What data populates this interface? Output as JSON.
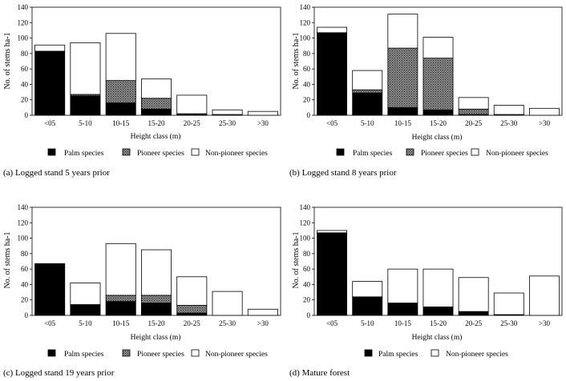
{
  "colors": {
    "palm": "#000000",
    "pioneer": "#7a7a7a",
    "nonpioneer": "#ffffff",
    "outline": "#000000"
  },
  "chart_data": [
    {
      "type": "bar",
      "stacked": true,
      "caption": "(a) Logged stand 5 years prior",
      "xlabel": "Height class (m)",
      "ylabel": "No. of stems ha-1",
      "ylim": [
        0,
        140
      ],
      "yticks": [
        "0",
        "20",
        "40",
        "60",
        "80",
        "100",
        "120",
        "140"
      ],
      "categories": [
        "<05",
        "5-10",
        "10-15",
        "15-20",
        "20-25",
        "25-30",
        ">30"
      ],
      "series": [
        {
          "name": "Palm species",
          "values": [
            83,
            25,
            16,
            8,
            1,
            0,
            0
          ]
        },
        {
          "name": "Pioneer species",
          "values": [
            0,
            2,
            29,
            14,
            1,
            1,
            0
          ]
        },
        {
          "name": "Non-pioneer species",
          "values": [
            8,
            67,
            61,
            25,
            24,
            6,
            5
          ]
        }
      ],
      "legend": [
        "Palm species",
        "Pioneer species",
        "Non-pioneer species"
      ]
    },
    {
      "type": "bar",
      "stacked": true,
      "caption": "(b) Logged stand 8 years prior",
      "xlabel": "Height class (m)",
      "ylabel": "No. of stems ha-1",
      "ylim": [
        0,
        140
      ],
      "yticks": [
        "0",
        "20",
        "40",
        "60",
        "80",
        "100",
        "120",
        "140"
      ],
      "categories": [
        "<05",
        "5-10",
        "10-15",
        "15-20",
        "20-25",
        "25-30",
        ">30"
      ],
      "series": [
        {
          "name": "Palm species",
          "values": [
            106,
            29,
            10,
            7,
            1,
            0,
            0
          ]
        },
        {
          "name": "Pioneer species",
          "values": [
            1,
            4,
            77,
            67,
            7,
            1,
            0
          ]
        },
        {
          "name": "Non-pioneer species",
          "values": [
            7,
            25,
            44,
            27,
            15,
            12,
            9
          ]
        }
      ],
      "legend": [
        "Palm species",
        "Pioneer species",
        "Non-pioneer species"
      ]
    },
    {
      "type": "bar",
      "stacked": true,
      "caption": "(c) Logged stand 19 years prior",
      "xlabel": "Height class (m)",
      "ylabel": "No. of stems ha-1",
      "ylim": [
        0,
        140
      ],
      "yticks": [
        "0",
        "20",
        "40",
        "60",
        "80",
        "100",
        "120",
        "140"
      ],
      "categories": [
        "<05",
        "5-10",
        "10-15",
        "15-20",
        "20-25",
        "25-30",
        ">30"
      ],
      "series": [
        {
          "name": "Palm species",
          "values": [
            67,
            14,
            18,
            16,
            3,
            0,
            0
          ]
        },
        {
          "name": "Pioneer species",
          "values": [
            0,
            0,
            8,
            10,
            10,
            0,
            0
          ]
        },
        {
          "name": "Non-pioneer species",
          "values": [
            0,
            28,
            67,
            59,
            37,
            31,
            8
          ]
        }
      ],
      "legend": [
        "Palm species",
        "Pioneer species",
        "Non-pioneer species"
      ]
    },
    {
      "type": "bar",
      "stacked": true,
      "caption": "(d) Mature forest",
      "xlabel": "Height class (m)",
      "ylabel": "No. of stems ha-1",
      "ylim": [
        0,
        140
      ],
      "yticks": [
        "0",
        "20",
        "40",
        "60",
        "80",
        "100",
        "120",
        "140"
      ],
      "categories": [
        "<05",
        "5-10",
        "10-15",
        "15-20",
        "20-25",
        "25-30",
        ">30"
      ],
      "series": [
        {
          "name": "Palm species",
          "values": [
            107,
            24,
            16,
            11,
            5,
            1,
            0
          ]
        },
        {
          "name": "Non-pioneer species",
          "values": [
            3,
            20,
            44,
            49,
            44,
            28,
            51
          ]
        }
      ],
      "legend": [
        "Palm species",
        "Non-pioneer species"
      ]
    }
  ]
}
